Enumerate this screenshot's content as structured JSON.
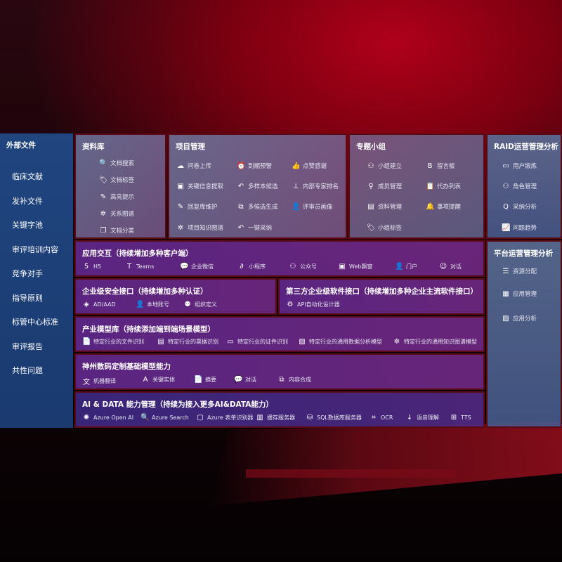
{
  "external": {
    "title": "外部文件",
    "items": [
      "临床文献",
      "发补文件",
      "关键字池",
      "审评培训内容",
      "竞争对手",
      "指导原则",
      "标管中心标准",
      "审评报告",
      "共性问题"
    ]
  },
  "library": {
    "title": "资料库",
    "items": [
      {
        "icon": "doc-search",
        "label": "文档搜索"
      },
      {
        "icon": "tag",
        "label": "文档标签"
      },
      {
        "icon": "pen",
        "label": "高亮提示"
      },
      {
        "icon": "graph",
        "label": "关系图谱"
      },
      {
        "icon": "doc-stack",
        "label": "文档分类"
      }
    ]
  },
  "project": {
    "title": "项目管理",
    "items": [
      {
        "icon": "cloud-upload",
        "label": "问卷上传"
      },
      {
        "icon": "alarm",
        "label": "到期预警"
      },
      {
        "icon": "thumbs-up",
        "label": "点赞感谢"
      },
      {
        "icon": "window",
        "label": "关键信息提取"
      },
      {
        "icon": "reply",
        "label": "多样本候选"
      },
      {
        "icon": "ranking",
        "label": "内部专家排名"
      },
      {
        "icon": "pen",
        "label": "回复库维护"
      },
      {
        "icon": "puzzle",
        "label": "多候选生成"
      },
      {
        "icon": "user",
        "label": "评审员画像"
      },
      {
        "icon": "graph",
        "label": "项目知识图谱"
      },
      {
        "icon": "reply",
        "label": "一键采纳"
      }
    ]
  },
  "group": {
    "title": "专题小组",
    "items": [
      {
        "icon": "users",
        "label": "小组建立"
      },
      {
        "icon": "bbs",
        "label": "留言板"
      },
      {
        "icon": "user-add",
        "label": "成员管理"
      },
      {
        "icon": "clipboard",
        "label": "代办列表"
      },
      {
        "icon": "folder",
        "label": "资料管理"
      },
      {
        "icon": "bell",
        "label": "事项提醒"
      },
      {
        "icon": "tag",
        "label": "小组标签"
      }
    ]
  },
  "raid": {
    "title": "RAID运营管理分析",
    "items": [
      {
        "icon": "id-card",
        "label": "用户锻炼"
      },
      {
        "icon": "users",
        "label": "角色管理"
      },
      {
        "icon": "qa",
        "label": "采纳分析"
      },
      {
        "icon": "trend",
        "label": "问题趋势"
      }
    ]
  },
  "platform": {
    "title": "平台运营管理分析",
    "items": [
      {
        "icon": "list",
        "label": "资源分配"
      },
      {
        "icon": "apps",
        "label": "应用管理"
      },
      {
        "icon": "chart",
        "label": "应用分析"
      }
    ]
  },
  "app": {
    "title": "应用交互（持续增加多种客户端）",
    "items": [
      {
        "icon": "html5",
        "label": "H5"
      },
      {
        "icon": "teams",
        "label": "Teams"
      },
      {
        "icon": "wechat",
        "label": "企业微信"
      },
      {
        "icon": "miniprogram",
        "label": "小程序"
      },
      {
        "icon": "users",
        "label": "公众号"
      },
      {
        "icon": "window",
        "label": "Web飘窗"
      },
      {
        "icon": "user",
        "label": "门户"
      },
      {
        "icon": "chat-users",
        "label": "对话"
      }
    ]
  },
  "security": {
    "title": "企业级安全接口（持续增加多种认证）",
    "items": [
      {
        "icon": "diamond",
        "label": "AD/AAD"
      },
      {
        "icon": "user",
        "label": "本地账号"
      },
      {
        "icon": "org",
        "label": "组织定义"
      }
    ]
  },
  "thirdparty": {
    "title": "第三方企业级软件接口（持续增加多种企业主流软件接口）",
    "items": [
      {
        "icon": "gear",
        "label": "API自动化设计器"
      }
    ]
  },
  "industry": {
    "title": "产业模型库（持续添加端到端场景模型）",
    "items": [
      {
        "icon": "doc",
        "label": "特定行业的文件识别"
      },
      {
        "icon": "receipt",
        "label": "特定行业的票据识别"
      },
      {
        "icon": "id-card",
        "label": "特定行业的证件识别"
      },
      {
        "icon": "chart",
        "label": "特定行业的通用数据分析模型"
      },
      {
        "icon": "graph",
        "label": "特定行业的通用知识图谱模型"
      }
    ]
  },
  "base": {
    "title": "神州数码定制基础模型能力",
    "items": [
      {
        "icon": "translate",
        "label": "机器翻译"
      },
      {
        "icon": "entity",
        "label": "关键实体"
      },
      {
        "icon": "doc",
        "label": "摘要"
      },
      {
        "icon": "chat",
        "label": "对话"
      },
      {
        "icon": "puzzle",
        "label": "内容合成"
      }
    ]
  },
  "ai": {
    "title": "AI & DATA 能力管理（持续为接入更多AI&DATA能力）",
    "items": [
      {
        "icon": "openai",
        "label": "Azure Open AI"
      },
      {
        "icon": "doc-search",
        "label": "Azure Search"
      },
      {
        "icon": "form",
        "label": "Azure 表单识别器"
      },
      {
        "icon": "cache",
        "label": "缓存服务器"
      },
      {
        "icon": "database",
        "label": "SQL数据库服务器"
      },
      {
        "icon": "ocr",
        "label": "OCR"
      },
      {
        "icon": "voice",
        "label": "语音理解"
      },
      {
        "icon": "tts",
        "label": "TTS"
      }
    ]
  }
}
